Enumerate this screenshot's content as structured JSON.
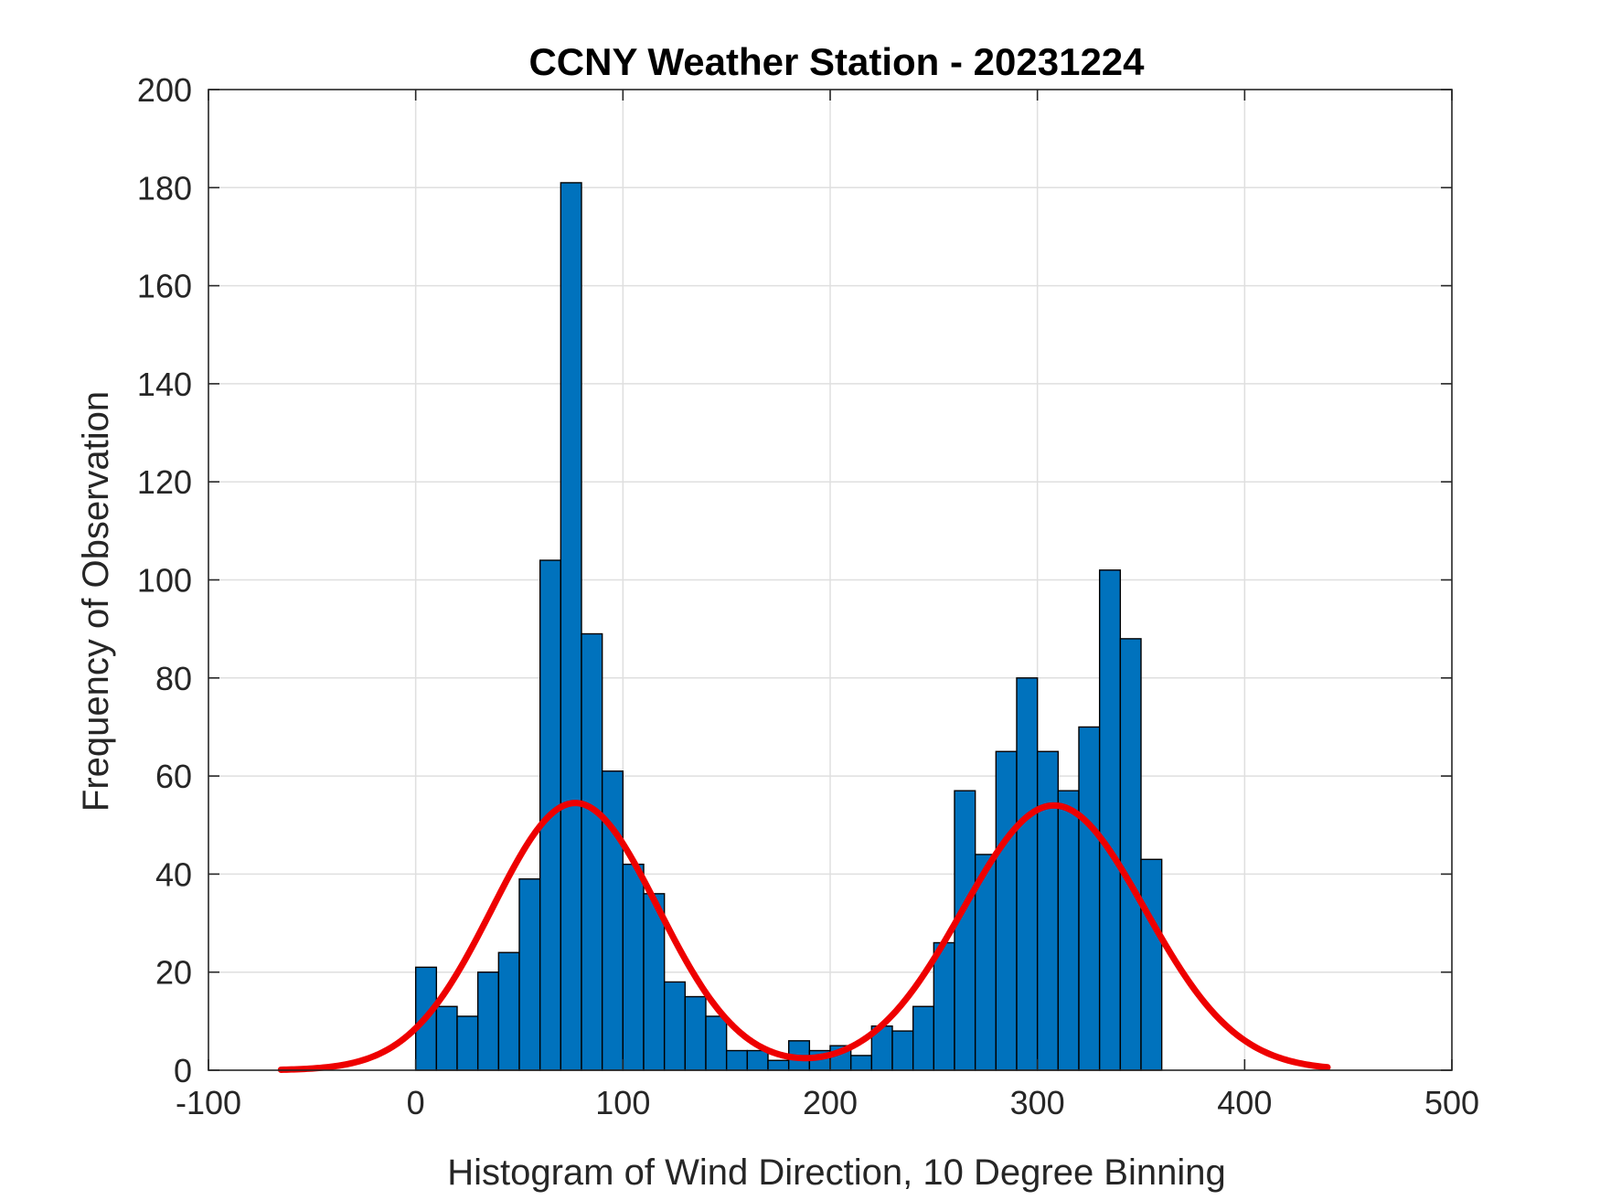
{
  "chart_data": {
    "type": "bar",
    "title": "CCNY Weather Station - 20231224",
    "xlabel": "Histogram of Wind Direction, 10 Degree Binning",
    "ylabel": "Frequency of Observation",
    "xlim": [
      -100,
      500
    ],
    "ylim": [
      0,
      200
    ],
    "xticks": [
      -100,
      0,
      100,
      200,
      300,
      400,
      500
    ],
    "yticks": [
      0,
      20,
      40,
      60,
      80,
      100,
      120,
      140,
      160,
      180,
      200
    ],
    "grid": true,
    "bin_width": 10,
    "bin_edges_start": 0,
    "values": [
      21,
      13,
      11,
      20,
      24,
      39,
      104,
      181,
      89,
      61,
      42,
      36,
      18,
      15,
      11,
      4,
      4,
      2,
      6,
      4,
      5,
      3,
      9,
      8,
      13,
      26,
      57,
      44,
      65,
      80,
      65,
      57,
      70,
      102,
      88,
      43
    ],
    "fit_curve": {
      "name": "fit",
      "x_range": [
        -65,
        440
      ],
      "components": [
        {
          "amplitude": 54.5,
          "mean": 77,
          "sigma": 40
        },
        {
          "amplitude": 54.0,
          "mean": 308,
          "sigma": 44
        }
      ]
    },
    "colors": {
      "bar_fill": "#0072BD",
      "bar_edge": "#000000",
      "fit_line": "#EE0000",
      "grid": "#DFDFDF",
      "axes": "#262626"
    }
  }
}
